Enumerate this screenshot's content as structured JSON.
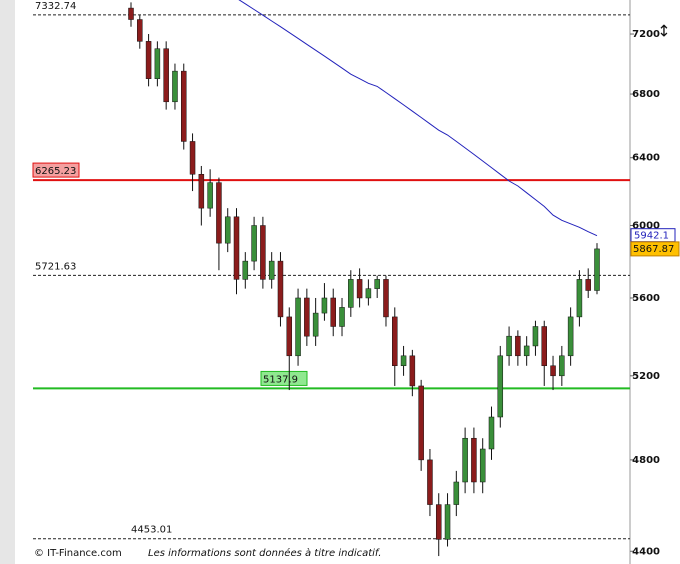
{
  "chart_data": {
    "type": "candlestick",
    "log_scale": true,
    "ylim": [
      4347,
      7437
    ],
    "yticks": [
      4400,
      4800,
      5200,
      5600,
      6000,
      6400,
      6800,
      7200
    ],
    "up_color": "#3a8f3a",
    "down_color": "#8b1c1c",
    "open": [
      7380,
      7300,
      7150,
      6900,
      7100,
      6750,
      6950,
      6500,
      6300,
      6100,
      6250,
      5900,
      6050,
      5700,
      5800,
      6000,
      5700,
      5800,
      5500,
      5300,
      5600,
      5400,
      5520,
      5600,
      5450,
      5550,
      5700,
      5600,
      5650,
      5700,
      5500,
      5250,
      5300,
      5150,
      4800,
      4600,
      4450,
      4600,
      4700,
      4900,
      4700,
      4850,
      5000,
      5300,
      5400,
      5300,
      5350,
      5450,
      5250,
      5200,
      5300,
      5500,
      5700,
      5640
    ],
    "high": [
      7420,
      7330,
      7200,
      7150,
      7150,
      7000,
      7000,
      6550,
      6350,
      6330,
      6280,
      6100,
      6100,
      5850,
      6050,
      6050,
      5850,
      5850,
      5550,
      5650,
      5650,
      5600,
      5680,
      5650,
      5600,
      5750,
      5760,
      5700,
      5720,
      5720,
      5550,
      5350,
      5330,
      5180,
      4850,
      4650,
      4650,
      4750,
      4950,
      4950,
      4900,
      5050,
      5350,
      5450,
      5430,
      5400,
      5480,
      5480,
      5300,
      5350,
      5550,
      5750,
      5760,
      5900
    ],
    "low": [
      7250,
      7100,
      6850,
      6850,
      6700,
      6700,
      6450,
      6200,
      6000,
      6050,
      5750,
      5850,
      5620,
      5650,
      5750,
      5650,
      5650,
      5450,
      5130,
      5250,
      5350,
      5350,
      5480,
      5400,
      5400,
      5500,
      5550,
      5560,
      5600,
      5450,
      5150,
      5200,
      5100,
      4750,
      4550,
      4380,
      4420,
      4550,
      4650,
      4650,
      4650,
      4800,
      4950,
      5250,
      5250,
      5250,
      5300,
      5150,
      5130,
      5150,
      5250,
      5450,
      5600,
      5620
    ],
    "close": [
      7300,
      7150,
      6900,
      7100,
      6750,
      6950,
      6500,
      6300,
      6100,
      6250,
      5900,
      6050,
      5700,
      5800,
      6000,
      5700,
      5800,
      5500,
      5300,
      5600,
      5400,
      5520,
      5600,
      5450,
      5550,
      5700,
      5600,
      5650,
      5700,
      5500,
      5250,
      5300,
      5150,
      4800,
      4600,
      4450,
      4600,
      4700,
      4900,
      4700,
      4850,
      5000,
      5300,
      5400,
      5300,
      5350,
      5450,
      5250,
      5200,
      5300,
      5500,
      5700,
      5640,
      5867.87
    ],
    "moving_average": {
      "color": "#2222bb",
      "values": [
        null,
        null,
        null,
        null,
        null,
        null,
        null,
        null,
        null,
        null,
        null,
        null,
        7450,
        7410,
        7370,
        7330,
        7290,
        7250,
        7210,
        7170,
        7130,
        7090,
        7050,
        7010,
        6970,
        6930,
        6900,
        6870,
        6850,
        6810,
        6770,
        6730,
        6690,
        6650,
        6610,
        6570,
        6540,
        6500,
        6460,
        6420,
        6380,
        6340,
        6300,
        6260,
        6230,
        6190,
        6150,
        6110,
        6060,
        6030,
        6010,
        5990,
        5965,
        5942.1
      ]
    },
    "hlines": [
      {
        "value": 7332.74,
        "color": "#222222",
        "style": "dashed"
      },
      {
        "value": 6265.23,
        "color": "#e01010",
        "style": "solid",
        "label_bg": "#f4a0a0"
      },
      {
        "value": 5721.63,
        "color": "#222222",
        "style": "dashed"
      },
      {
        "value": 5137.9,
        "color": "#22bb22",
        "style": "solid",
        "label_bg": "#90e890"
      },
      {
        "value": 4453.01,
        "color": "#222222",
        "style": "dashed"
      }
    ],
    "footer": {
      "source": "© IT-Finance.com",
      "disclaimer": "Les informations sont données à titre indicatif."
    }
  }
}
